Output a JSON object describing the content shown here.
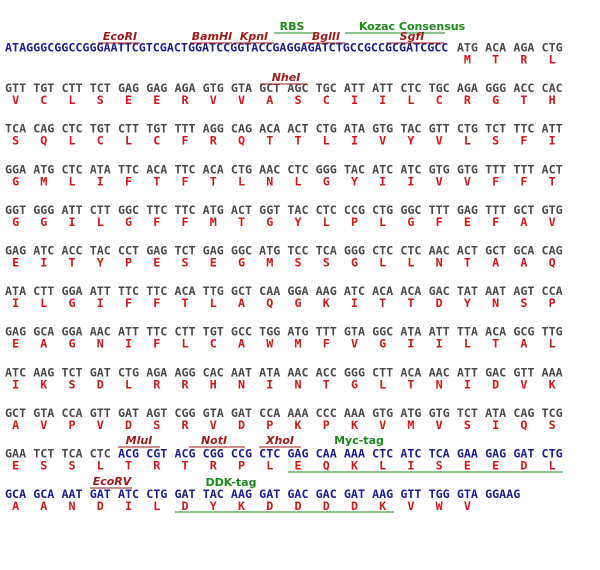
{
  "colors": {
    "insert": "#4a4a4a",
    "vector": "#1c1c8c",
    "aa": "#d01818",
    "site": "#9b1b1b",
    "feature": "#1b8a1b"
  },
  "rows": [
    {
      "items": [
        {
          "codon": "ATAGGGCGGCCGGGAATTCGTCGACTGGATCCGGTACCGAGGAGATCTGCCGCCGCGATCGCC",
          "vector": true
        },
        {
          "codon": "ATG",
          "aa": "M"
        },
        {
          "codon": "ACA",
          "aa": "T"
        },
        {
          "codon": "AGA",
          "aa": "R"
        },
        {
          "codon": "CTG",
          "aa": "L"
        }
      ],
      "annotations": [
        {
          "label": "EcoRI",
          "kind": "site"
        },
        {
          "label": "BamHI",
          "kind": "site"
        },
        {
          "label": "KpnI",
          "kind": "site"
        },
        {
          "label": "RBS",
          "kind": "feature"
        },
        {
          "label": "BglII",
          "kind": "site"
        },
        {
          "label": "Kozac Consensus",
          "kind": "feature"
        },
        {
          "label": "SgfI",
          "kind": "site"
        }
      ]
    },
    {
      "items": [
        {
          "codon": "GTT",
          "aa": "V"
        },
        {
          "codon": "TGT",
          "aa": "C"
        },
        {
          "codon": "CTT",
          "aa": "L"
        },
        {
          "codon": "TCT",
          "aa": "S"
        },
        {
          "codon": "GAG",
          "aa": "E"
        },
        {
          "codon": "GAG",
          "aa": "E"
        },
        {
          "codon": "AGA",
          "aa": "R"
        },
        {
          "codon": "GTG",
          "aa": "V"
        },
        {
          "codon": "GTA",
          "aa": "V"
        },
        {
          "codon": "GCT",
          "aa": "A"
        },
        {
          "codon": "AGC",
          "aa": "S"
        },
        {
          "codon": "TGC",
          "aa": "C"
        },
        {
          "codon": "ATT",
          "aa": "I"
        },
        {
          "codon": "ATT",
          "aa": "I"
        },
        {
          "codon": "CTC",
          "aa": "L"
        },
        {
          "codon": "TGC",
          "aa": "C"
        },
        {
          "codon": "AGA",
          "aa": "R"
        },
        {
          "codon": "GGG",
          "aa": "G"
        },
        {
          "codon": "ACC",
          "aa": "T"
        },
        {
          "codon": "CAC",
          "aa": "H"
        }
      ],
      "annotations": [
        {
          "label": "NheI",
          "kind": "site"
        }
      ]
    },
    {
      "items": [
        {
          "codon": "TCA",
          "aa": "S"
        },
        {
          "codon": "CAG",
          "aa": "Q"
        },
        {
          "codon": "CTC",
          "aa": "L"
        },
        {
          "codon": "TGT",
          "aa": "C"
        },
        {
          "codon": "CTT",
          "aa": "L"
        },
        {
          "codon": "TGT",
          "aa": "C"
        },
        {
          "codon": "TTT",
          "aa": "F"
        },
        {
          "codon": "AGG",
          "aa": "R"
        },
        {
          "codon": "CAG",
          "aa": "Q"
        },
        {
          "codon": "ACA",
          "aa": "T"
        },
        {
          "codon": "ACT",
          "aa": "T"
        },
        {
          "codon": "CTG",
          "aa": "L"
        },
        {
          "codon": "ATA",
          "aa": "I"
        },
        {
          "codon": "GTG",
          "aa": "V"
        },
        {
          "codon": "TAC",
          "aa": "Y"
        },
        {
          "codon": "GTT",
          "aa": "V"
        },
        {
          "codon": "CTG",
          "aa": "L"
        },
        {
          "codon": "TCT",
          "aa": "S"
        },
        {
          "codon": "TTC",
          "aa": "F"
        },
        {
          "codon": "ATT",
          "aa": "I"
        }
      ]
    },
    {
      "items": [
        {
          "codon": "GGA",
          "aa": "G"
        },
        {
          "codon": "ATG",
          "aa": "M"
        },
        {
          "codon": "CTC",
          "aa": "L"
        },
        {
          "codon": "ATA",
          "aa": "I"
        },
        {
          "codon": "TTC",
          "aa": "F"
        },
        {
          "codon": "ACA",
          "aa": "T"
        },
        {
          "codon": "TTC",
          "aa": "F"
        },
        {
          "codon": "ACA",
          "aa": "T"
        },
        {
          "codon": "CTG",
          "aa": "L"
        },
        {
          "codon": "AAC",
          "aa": "N"
        },
        {
          "codon": "CTC",
          "aa": "L"
        },
        {
          "codon": "GGG",
          "aa": "G"
        },
        {
          "codon": "TAC",
          "aa": "Y"
        },
        {
          "codon": "ATC",
          "aa": "I"
        },
        {
          "codon": "ATC",
          "aa": "I"
        },
        {
          "codon": "GTG",
          "aa": "V"
        },
        {
          "codon": "GTG",
          "aa": "V"
        },
        {
          "codon": "TTT",
          "aa": "F"
        },
        {
          "codon": "TTT",
          "aa": "F"
        },
        {
          "codon": "ACT",
          "aa": "T"
        }
      ]
    },
    {
      "items": [
        {
          "codon": "GGT",
          "aa": "G"
        },
        {
          "codon": "GGG",
          "aa": "G"
        },
        {
          "codon": "ATT",
          "aa": "I"
        },
        {
          "codon": "CTT",
          "aa": "L"
        },
        {
          "codon": "GGC",
          "aa": "G"
        },
        {
          "codon": "TTC",
          "aa": "F"
        },
        {
          "codon": "TTC",
          "aa": "F"
        },
        {
          "codon": "ATG",
          "aa": "M"
        },
        {
          "codon": "ACT",
          "aa": "T"
        },
        {
          "codon": "GGT",
          "aa": "G"
        },
        {
          "codon": "TAC",
          "aa": "Y"
        },
        {
          "codon": "CTC",
          "aa": "L"
        },
        {
          "codon": "CCG",
          "aa": "P"
        },
        {
          "codon": "CTG",
          "aa": "L"
        },
        {
          "codon": "GGC",
          "aa": "G"
        },
        {
          "codon": "TTT",
          "aa": "F"
        },
        {
          "codon": "GAG",
          "aa": "E"
        },
        {
          "codon": "TTT",
          "aa": "F"
        },
        {
          "codon": "GCT",
          "aa": "A"
        },
        {
          "codon": "GTG",
          "aa": "V"
        }
      ]
    },
    {
      "items": [
        {
          "codon": "GAG",
          "aa": "E"
        },
        {
          "codon": "ATC",
          "aa": "I"
        },
        {
          "codon": "ACC",
          "aa": "T"
        },
        {
          "codon": "TAC",
          "aa": "Y"
        },
        {
          "codon": "CCT",
          "aa": "P"
        },
        {
          "codon": "GAG",
          "aa": "E"
        },
        {
          "codon": "TCT",
          "aa": "S"
        },
        {
          "codon": "GAG",
          "aa": "E"
        },
        {
          "codon": "GGC",
          "aa": "G"
        },
        {
          "codon": "ATG",
          "aa": "M"
        },
        {
          "codon": "TCC",
          "aa": "S"
        },
        {
          "codon": "TCA",
          "aa": "S"
        },
        {
          "codon": "GGG",
          "aa": "G"
        },
        {
          "codon": "CTC",
          "aa": "L"
        },
        {
          "codon": "CTC",
          "aa": "L"
        },
        {
          "codon": "AAC",
          "aa": "N"
        },
        {
          "codon": "ACT",
          "aa": "T"
        },
        {
          "codon": "GCT",
          "aa": "A"
        },
        {
          "codon": "GCA",
          "aa": "A"
        },
        {
          "codon": "CAG",
          "aa": "Q"
        }
      ]
    },
    {
      "items": [
        {
          "codon": "ATA",
          "aa": "I"
        },
        {
          "codon": "CTT",
          "aa": "L"
        },
        {
          "codon": "GGA",
          "aa": "G"
        },
        {
          "codon": "ATT",
          "aa": "I"
        },
        {
          "codon": "TTC",
          "aa": "F"
        },
        {
          "codon": "TTC",
          "aa": "F"
        },
        {
          "codon": "ACA",
          "aa": "T"
        },
        {
          "codon": "TTG",
          "aa": "L"
        },
        {
          "codon": "GCT",
          "aa": "A"
        },
        {
          "codon": "CAA",
          "aa": "Q"
        },
        {
          "codon": "GGA",
          "aa": "G"
        },
        {
          "codon": "AAG",
          "aa": "K"
        },
        {
          "codon": "ATC",
          "aa": "I"
        },
        {
          "codon": "ACA",
          "aa": "T"
        },
        {
          "codon": "ACA",
          "aa": "T"
        },
        {
          "codon": "GAC",
          "aa": "D"
        },
        {
          "codon": "TAT",
          "aa": "Y"
        },
        {
          "codon": "AAT",
          "aa": "N"
        },
        {
          "codon": "AGT",
          "aa": "S"
        },
        {
          "codon": "CCA",
          "aa": "P"
        }
      ]
    },
    {
      "items": [
        {
          "codon": "GAG",
          "aa": "E"
        },
        {
          "codon": "GCA",
          "aa": "A"
        },
        {
          "codon": "GGA",
          "aa": "G"
        },
        {
          "codon": "AAC",
          "aa": "N"
        },
        {
          "codon": "ATT",
          "aa": "I"
        },
        {
          "codon": "TTC",
          "aa": "F"
        },
        {
          "codon": "CTT",
          "aa": "L"
        },
        {
          "codon": "TGT",
          "aa": "C"
        },
        {
          "codon": "GCC",
          "aa": "A"
        },
        {
          "codon": "TGG",
          "aa": "W"
        },
        {
          "codon": "ATG",
          "aa": "M"
        },
        {
          "codon": "TTT",
          "aa": "F"
        },
        {
          "codon": "GTA",
          "aa": "V"
        },
        {
          "codon": "GGC",
          "aa": "G"
        },
        {
          "codon": "ATA",
          "aa": "I"
        },
        {
          "codon": "ATT",
          "aa": "I"
        },
        {
          "codon": "TTA",
          "aa": "L"
        },
        {
          "codon": "ACA",
          "aa": "T"
        },
        {
          "codon": "GCG",
          "aa": "A"
        },
        {
          "codon": "TTG",
          "aa": "L"
        }
      ]
    },
    {
      "items": [
        {
          "codon": "ATC",
          "aa": "I"
        },
        {
          "codon": "AAG",
          "aa": "K"
        },
        {
          "codon": "TCT",
          "aa": "S"
        },
        {
          "codon": "GAT",
          "aa": "D"
        },
        {
          "codon": "CTG",
          "aa": "L"
        },
        {
          "codon": "AGA",
          "aa": "R"
        },
        {
          "codon": "AGG",
          "aa": "R"
        },
        {
          "codon": "CAC",
          "aa": "H"
        },
        {
          "codon": "AAT",
          "aa": "N"
        },
        {
          "codon": "ATA",
          "aa": "I"
        },
        {
          "codon": "AAC",
          "aa": "N"
        },
        {
          "codon": "ACC",
          "aa": "T"
        },
        {
          "codon": "GGG",
          "aa": "G"
        },
        {
          "codon": "CTT",
          "aa": "L"
        },
        {
          "codon": "ACA",
          "aa": "T"
        },
        {
          "codon": "AAC",
          "aa": "N"
        },
        {
          "codon": "ATT",
          "aa": "I"
        },
        {
          "codon": "GAC",
          "aa": "D"
        },
        {
          "codon": "GTT",
          "aa": "V"
        },
        {
          "codon": "AAA",
          "aa": "K"
        }
      ]
    },
    {
      "items": [
        {
          "codon": "GCT",
          "aa": "A"
        },
        {
          "codon": "GTA",
          "aa": "V"
        },
        {
          "codon": "CCA",
          "aa": "P"
        },
        {
          "codon": "GTT",
          "aa": "V"
        },
        {
          "codon": "GAT",
          "aa": "D"
        },
        {
          "codon": "AGT",
          "aa": "S"
        },
        {
          "codon": "CGG",
          "aa": "R"
        },
        {
          "codon": "GTA",
          "aa": "V"
        },
        {
          "codon": "GAT",
          "aa": "D"
        },
        {
          "codon": "CCA",
          "aa": "P"
        },
        {
          "codon": "AAA",
          "aa": "K"
        },
        {
          "codon": "CCC",
          "aa": "P"
        },
        {
          "codon": "AAA",
          "aa": "K"
        },
        {
          "codon": "GTG",
          "aa": "V"
        },
        {
          "codon": "ATG",
          "aa": "M"
        },
        {
          "codon": "GTG",
          "aa": "V"
        },
        {
          "codon": "TCT",
          "aa": "S"
        },
        {
          "codon": "ATA",
          "aa": "I"
        },
        {
          "codon": "CAG",
          "aa": "Q"
        },
        {
          "codon": "TCG",
          "aa": "S"
        }
      ]
    },
    {
      "items": [
        {
          "codon": "GAA",
          "aa": "E"
        },
        {
          "codon": "TCT",
          "aa": "S"
        },
        {
          "codon": "TCA",
          "aa": "S"
        },
        {
          "codon": "CTC",
          "aa": "L"
        },
        {
          "codon": "ACG",
          "aa": "T",
          "vector": true
        },
        {
          "codon": "CGT",
          "aa": "R",
          "vector": true
        },
        {
          "codon": "ACG",
          "aa": "T",
          "vector": true
        },
        {
          "codon": "CGG",
          "aa": "R",
          "vector": true
        },
        {
          "codon": "CCG",
          "aa": "P",
          "vector": true
        },
        {
          "codon": "CTC",
          "aa": "L",
          "vector": true
        },
        {
          "codon": "GAG",
          "aa": "E",
          "vector": true
        },
        {
          "codon": "CAA",
          "aa": "Q",
          "vector": true
        },
        {
          "codon": "AAA",
          "aa": "K",
          "vector": true
        },
        {
          "codon": "CTC",
          "aa": "L",
          "vector": true
        },
        {
          "codon": "ATC",
          "aa": "I",
          "vector": true
        },
        {
          "codon": "TCA",
          "aa": "S",
          "vector": true
        },
        {
          "codon": "GAA",
          "aa": "E",
          "vector": true
        },
        {
          "codon": "GAG",
          "aa": "E",
          "vector": true
        },
        {
          "codon": "GAT",
          "aa": "D",
          "vector": true
        },
        {
          "codon": "CTG",
          "aa": "L",
          "vector": true
        }
      ],
      "annotations": [
        {
          "label": "MluI",
          "kind": "site"
        },
        {
          "label": "NotI",
          "kind": "site"
        },
        {
          "label": "XhoI",
          "kind": "site"
        },
        {
          "label": "Myc-tag",
          "kind": "feature"
        }
      ]
    },
    {
      "items": [
        {
          "codon": "GCA",
          "aa": "A",
          "vector": true
        },
        {
          "codon": "GCA",
          "aa": "A",
          "vector": true
        },
        {
          "codon": "AAT",
          "aa": "N",
          "vector": true
        },
        {
          "codon": "GAT",
          "aa": "D",
          "vector": true
        },
        {
          "codon": "ATC",
          "aa": "I",
          "vector": true
        },
        {
          "codon": "CTG",
          "aa": "L",
          "vector": true
        },
        {
          "codon": "GAT",
          "aa": "D",
          "vector": true
        },
        {
          "codon": "TAC",
          "aa": "Y",
          "vector": true
        },
        {
          "codon": "AAG",
          "aa": "K",
          "vector": true
        },
        {
          "codon": "GAT",
          "aa": "D",
          "vector": true
        },
        {
          "codon": "GAC",
          "aa": "D",
          "vector": true
        },
        {
          "codon": "GAC",
          "aa": "D",
          "vector": true
        },
        {
          "codon": "GAT",
          "aa": "D",
          "vector": true
        },
        {
          "codon": "AAG",
          "aa": "K",
          "vector": true
        },
        {
          "codon": "GTT",
          "aa": "V",
          "vector": true
        },
        {
          "codon": "TGG",
          "aa": "W",
          "vector": true
        },
        {
          "codon": "GTA",
          "aa": "V",
          "vector": true
        },
        {
          "codon": "GGAAG",
          "vector": true
        }
      ],
      "annotations": [
        {
          "label": "EcoRV",
          "kind": "site"
        },
        {
          "label": "DDK-tag",
          "kind": "feature"
        }
      ]
    }
  ]
}
